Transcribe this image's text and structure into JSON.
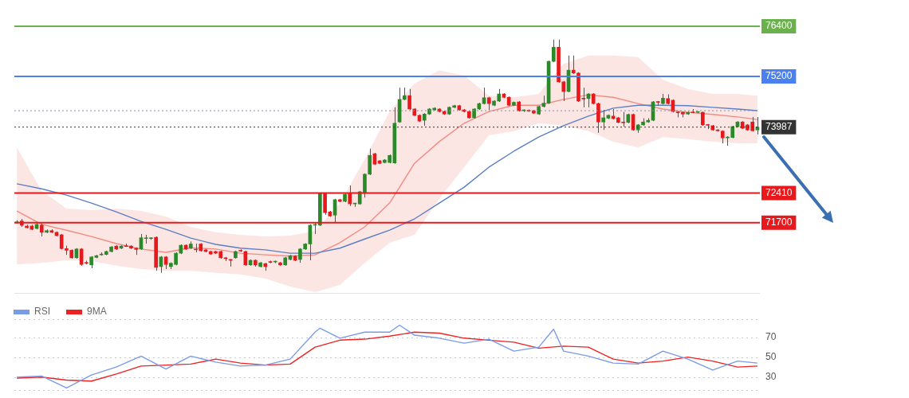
{
  "chart_data": [
    {
      "type": "candlestick",
      "categories": [
        null,
        null,
        null,
        null,
        null,
        null,
        null,
        null,
        null,
        null,
        null,
        null,
        null,
        null,
        null,
        null,
        null,
        null,
        null,
        null,
        null,
        null,
        null,
        null,
        null,
        null,
        null,
        null,
        null,
        null,
        null,
        null,
        null,
        null,
        null,
        null,
        null,
        null,
        null,
        null,
        null,
        null,
        null,
        null,
        null,
        null,
        null,
        null,
        null,
        null,
        null,
        null,
        null,
        null,
        null,
        null,
        null,
        null,
        null,
        null,
        null,
        null,
        null,
        null,
        null,
        null,
        null,
        null,
        null,
        null,
        null,
        null,
        null,
        null,
        null,
        null,
        null,
        null,
        null,
        null,
        null,
        null,
        null,
        null,
        null,
        null,
        null,
        null,
        null,
        null,
        null,
        null,
        null,
        null,
        null,
        null,
        null,
        null,
        null,
        null,
        null,
        null,
        null,
        null,
        null,
        null,
        null,
        null,
        null,
        null,
        null,
        null,
        null,
        null,
        null,
        null,
        null,
        null,
        null,
        null,
        null,
        null,
        null,
        null,
        null,
        null,
        null,
        null,
        null,
        null,
        null,
        null,
        null,
        null,
        null,
        null,
        null,
        null,
        null,
        null,
        null,
        null,
        null,
        null,
        null,
        null,
        null,
        null,
        null,
        null
      ],
      "ohlc": [
        [
          71700,
          71760,
          71680,
          71720
        ],
        [
          71740,
          71790,
          71600,
          71640
        ],
        [
          71620,
          71650,
          71560,
          71580
        ],
        [
          71620,
          71650,
          71520,
          71540
        ],
        [
          71560,
          71690,
          71540,
          71660
        ],
        [
          71640,
          71680,
          71370,
          71470
        ],
        [
          71470,
          71540,
          71450,
          71510
        ],
        [
          71510,
          71540,
          71450,
          71470
        ],
        [
          71470,
          71490,
          71370,
          71390
        ],
        [
          71410,
          71430,
          71060,
          71080
        ],
        [
          71080,
          71150,
          70930,
          71040
        ],
        [
          71040,
          71060,
          70840,
          70860
        ],
        [
          70860,
          71090,
          70840,
          71070
        ],
        [
          71070,
          71090,
          70670,
          70700
        ],
        [
          70740,
          70790,
          70700,
          70730
        ],
        [
          70690,
          70900,
          70610,
          70880
        ],
        [
          70870,
          70930,
          70850,
          70910
        ],
        [
          70930,
          70990,
          70910,
          70950
        ],
        [
          70940,
          71030,
          70920,
          71010
        ],
        [
          71010,
          71140,
          70990,
          71120
        ],
        [
          71140,
          71160,
          71050,
          71070
        ],
        [
          71090,
          71160,
          71070,
          71140
        ],
        [
          71140,
          71200,
          71120,
          71130
        ],
        [
          71140,
          71160,
          71070,
          71090
        ],
        [
          71090,
          71110,
          70930,
          71060
        ],
        [
          71070,
          71430,
          71050,
          71340
        ],
        [
          71320,
          71410,
          71200,
          71330
        ],
        [
          71320,
          71350,
          71290,
          71330
        ],
        [
          71350,
          71370,
          70550,
          70630
        ],
        [
          70650,
          70900,
          70500,
          70880
        ],
        [
          70880,
          70900,
          70590,
          70700
        ],
        [
          70650,
          70750,
          70590,
          70730
        ],
        [
          70700,
          70990,
          70680,
          70970
        ],
        [
          70970,
          71180,
          70950,
          71160
        ],
        [
          71160,
          71180,
          71050,
          71070
        ],
        [
          71090,
          71250,
          71070,
          71190
        ],
        [
          71060,
          71200,
          70990,
          71050
        ],
        [
          71190,
          71210,
          71010,
          71030
        ],
        [
          71050,
          71070,
          70990,
          71010
        ],
        [
          71010,
          71030,
          70930,
          70950
        ],
        [
          71010,
          71030,
          70950,
          70970
        ],
        [
          71010,
          71030,
          70840,
          70860
        ],
        [
          70860,
          70880,
          70780,
          70840
        ],
        [
          70810,
          70830,
          70650,
          70800
        ],
        [
          70860,
          71030,
          70840,
          71010
        ],
        [
          71030,
          71060,
          71000,
          71020
        ],
        [
          71010,
          71030,
          70670,
          70690
        ],
        [
          70690,
          70820,
          70670,
          70800
        ],
        [
          70800,
          70820,
          70650,
          70690
        ],
        [
          70650,
          70760,
          70630,
          70740
        ],
        [
          70720,
          70740,
          70550,
          70650
        ],
        [
          70760,
          70790,
          70730,
          70750
        ],
        [
          70760,
          70790,
          70730,
          70770
        ],
        [
          70740,
          70760,
          70670,
          70690
        ],
        [
          70690,
          70880,
          70670,
          70860
        ],
        [
          70820,
          70930,
          70800,
          70910
        ],
        [
          70900,
          70920,
          70780,
          70800
        ],
        [
          70820,
          71090,
          70740,
          71070
        ],
        [
          71070,
          71210,
          71050,
          71190
        ],
        [
          71190,
          71660,
          70800,
          71640
        ],
        [
          71640,
          71700,
          71430,
          71650
        ],
        [
          71640,
          72420,
          71620,
          72400
        ],
        [
          72400,
          72420,
          71890,
          71940
        ],
        [
          71960,
          71980,
          71840,
          71860
        ],
        [
          71880,
          72270,
          71700,
          72250
        ],
        [
          72250,
          72270,
          72190,
          72210
        ],
        [
          72210,
          72400,
          72190,
          72380
        ],
        [
          72400,
          72590,
          72100,
          72150
        ],
        [
          72150,
          72170,
          72080,
          72160
        ],
        [
          72150,
          72460,
          72130,
          72440
        ],
        [
          72420,
          72880,
          72300,
          72860
        ],
        [
          72860,
          73470,
          72840,
          73310
        ],
        [
          73350,
          73370,
          73080,
          73100
        ],
        [
          73180,
          73200,
          73100,
          73120
        ],
        [
          73140,
          73220,
          73120,
          73200
        ],
        [
          73140,
          73330,
          73120,
          73310
        ],
        [
          73130,
          74460,
          73110,
          74080
        ],
        [
          74110,
          74930,
          74090,
          74650
        ],
        [
          74650,
          74930,
          74630,
          74740
        ],
        [
          74740,
          74900,
          74400,
          74420
        ],
        [
          74420,
          74440,
          74250,
          74270
        ],
        [
          74270,
          74290,
          74110,
          74130
        ],
        [
          74150,
          74320,
          74020,
          74300
        ],
        [
          74300,
          74440,
          74280,
          74420
        ],
        [
          74400,
          74460,
          74380,
          74440
        ],
        [
          74420,
          74440,
          74340,
          74360
        ],
        [
          74360,
          74380,
          74280,
          74300
        ],
        [
          74300,
          74480,
          74280,
          74460
        ],
        [
          74460,
          74520,
          74440,
          74500
        ],
        [
          74500,
          74520,
          74380,
          74400
        ],
        [
          74400,
          74420,
          74340,
          74360
        ],
        [
          74360,
          74380,
          74190,
          74210
        ],
        [
          74210,
          74440,
          74190,
          74420
        ],
        [
          74420,
          74570,
          74400,
          74550
        ],
        [
          74550,
          74930,
          74530,
          74690
        ],
        [
          74690,
          74710,
          74400,
          74550
        ],
        [
          74510,
          74630,
          74490,
          74610
        ],
        [
          74610,
          74900,
          74590,
          74780
        ],
        [
          74780,
          74800,
          74680,
          74700
        ],
        [
          74700,
          74720,
          74490,
          74510
        ],
        [
          74510,
          74600,
          74490,
          74580
        ],
        [
          74590,
          74610,
          74360,
          74380
        ],
        [
          74380,
          74410,
          74350,
          74390
        ],
        [
          74380,
          74410,
          74350,
          74370
        ],
        [
          74380,
          74400,
          74300,
          74320
        ],
        [
          74300,
          74500,
          74280,
          74480
        ],
        [
          74480,
          74740,
          74460,
          74560
        ],
        [
          74560,
          75580,
          74540,
          75560
        ],
        [
          75560,
          76080,
          75540,
          75900
        ],
        [
          75900,
          76080,
          75050,
          75070
        ],
        [
          75070,
          75090,
          74610,
          74840
        ],
        [
          74840,
          75700,
          74820,
          75350
        ],
        [
          75350,
          75700,
          75260,
          75280
        ],
        [
          75280,
          75300,
          74590,
          74610
        ],
        [
          74670,
          74930,
          74460,
          74660
        ],
        [
          74670,
          74800,
          74460,
          74780
        ],
        [
          74780,
          74800,
          74530,
          74550
        ],
        [
          74550,
          74570,
          73850,
          74110
        ],
        [
          74110,
          74400,
          73920,
          74210
        ],
        [
          74200,
          74290,
          74180,
          74270
        ],
        [
          74250,
          74420,
          74170,
          74190
        ],
        [
          74210,
          74230,
          74080,
          74100
        ],
        [
          74100,
          74350,
          74000,
          74090
        ],
        [
          74100,
          74310,
          74080,
          74290
        ],
        [
          74290,
          74310,
          73900,
          73920
        ],
        [
          73920,
          74060,
          73850,
          74040
        ],
        [
          74040,
          74200,
          74020,
          74110
        ],
        [
          74110,
          74200,
          74090,
          74150
        ],
        [
          74150,
          74610,
          74130,
          74590
        ],
        [
          74590,
          74610,
          74500,
          74580
        ],
        [
          74550,
          74780,
          74530,
          74680
        ],
        [
          74670,
          74770,
          74530,
          74550
        ],
        [
          74630,
          74650,
          74340,
          74360
        ],
        [
          74340,
          74360,
          74220,
          74330
        ],
        [
          74340,
          74360,
          74220,
          74300
        ],
        [
          74300,
          74360,
          74280,
          74340
        ],
        [
          74340,
          74420,
          74320,
          74330
        ],
        [
          74340,
          74360,
          74320,
          74350
        ],
        [
          74340,
          74360,
          74020,
          74040
        ],
        [
          74040,
          74060,
          73940,
          74030
        ],
        [
          74020,
          74040,
          73900,
          73920
        ],
        [
          73920,
          73940,
          73880,
          73900
        ],
        [
          73890,
          73910,
          73600,
          73730
        ],
        [
          73730,
          73770,
          73540,
          73750
        ],
        [
          73740,
          74020,
          73720,
          74000
        ],
        [
          74000,
          74130,
          73980,
          74110
        ],
        [
          74110,
          74130,
          73940,
          73960
        ],
        [
          74040,
          74060,
          73900,
          73920
        ],
        [
          74110,
          74230,
          73880,
          73900
        ],
        [
          73920,
          74230,
          73810,
          73987
        ]
      ],
      "series": [
        {
          "type": "line",
          "color": "#5b7fc4",
          "values": [
            72630,
            null,
            null,
            null,
            null,
            72510,
            null,
            null,
            null,
            null,
            72360,
            null,
            null,
            null,
            null,
            72170,
            null,
            null,
            null,
            null,
            71960,
            null,
            null,
            null,
            null,
            71730,
            null,
            null,
            null,
            null,
            71540,
            null,
            null,
            null,
            null,
            71330,
            null,
            null,
            null,
            null,
            71180,
            null,
            null,
            null,
            null,
            71090,
            null,
            null,
            null,
            null,
            71050,
            null,
            null,
            null,
            null,
            70970,
            null,
            null,
            null,
            null,
            70970,
            null,
            null,
            null,
            null,
            71090,
            null,
            null,
            null,
            null,
            71310,
            null,
            null,
            null,
            null,
            71520,
            null,
            null,
            null,
            null,
            71790,
            null,
            null,
            null,
            null,
            72170,
            null,
            null,
            null,
            null,
            72550,
            null,
            null,
            null,
            null,
            73030,
            null,
            null,
            null,
            null,
            73410,
            null,
            null,
            null,
            null,
            73750,
            null,
            null,
            null,
            null,
            74020,
            null,
            null,
            null,
            null,
            74250,
            null,
            null,
            null,
            null,
            74440,
            null,
            null,
            null,
            null,
            74510,
            null,
            null,
            null,
            null,
            74510,
            null,
            null,
            null,
            null,
            74500,
            null,
            null,
            null,
            null,
            74460,
            null,
            null,
            null,
            null,
            74420,
            null,
            null,
            null,
            74380
          ]
        },
        {
          "type": "line",
          "color": "#f28b82",
          "values": [
            71980,
            null,
            null,
            null,
            null,
            71660,
            null,
            null,
            null,
            null,
            71520,
            null,
            null,
            null,
            null,
            71370,
            null,
            null,
            null,
            null,
            71200,
            null,
            null,
            null,
            null,
            71070,
            null,
            null,
            null,
            null,
            70990,
            null,
            null,
            null,
            null,
            71100,
            null,
            null,
            null,
            null,
            71070,
            null,
            null,
            null,
            null,
            70970,
            null,
            null,
            null,
            null,
            70930,
            null,
            null,
            null,
            null,
            70900,
            null,
            null,
            null,
            null,
            70930,
            null,
            null,
            null,
            null,
            71220,
            null,
            null,
            null,
            null,
            71600,
            null,
            null,
            null,
            null,
            72170,
            null,
            null,
            null,
            null,
            73120,
            null,
            null,
            null,
            null,
            73640,
            null,
            null,
            null,
            null,
            74080,
            null,
            null,
            null,
            null,
            74360,
            null,
            null,
            null,
            null,
            74510,
            null,
            null,
            null,
            null,
            74510,
            null,
            null,
            null,
            null,
            74650,
            null,
            null,
            null,
            null,
            74760,
            null,
            null,
            null,
            null,
            74700,
            null,
            null,
            null,
            null,
            74550,
            null,
            null,
            null,
            null,
            74420,
            null,
            null,
            null,
            null,
            74340,
            null,
            null,
            null,
            null,
            74290,
            null,
            null,
            null,
            null,
            74230,
            null,
            null,
            null,
            74170
          ],
          "upper": [
            73500,
            null,
            null,
            null,
            null,
            72460,
            null,
            null,
            null,
            null,
            72040,
            null,
            null,
            null,
            null,
            72000,
            null,
            null,
            null,
            null,
            72040,
            null,
            null,
            null,
            null,
            71980,
            null,
            null,
            null,
            null,
            71850,
            null,
            null,
            null,
            null,
            71600,
            null,
            null,
            null,
            null,
            71470,
            null,
            null,
            null,
            null,
            71410,
            null,
            null,
            null,
            null,
            71370,
            null,
            null,
            null,
            null,
            71390,
            null,
            null,
            null,
            null,
            71500,
            null,
            null,
            null,
            null,
            72170,
            null,
            null,
            null,
            null,
            73220,
            null,
            null,
            null,
            null,
            74360,
            null,
            null,
            null,
            null,
            75030,
            null,
            null,
            null,
            null,
            75350,
            null,
            null,
            null,
            null,
            75220,
            null,
            null,
            null,
            null,
            74740,
            null,
            null,
            null,
            null,
            74700,
            null,
            null,
            null,
            null,
            74780,
            null,
            null,
            null,
            null,
            75500,
            null,
            null,
            null,
            null,
            75700,
            null,
            null,
            null,
            null,
            75700,
            null,
            null,
            null,
            null,
            75660,
            null,
            null,
            null,
            null,
            75120,
            null,
            null,
            null,
            null,
            74900,
            null,
            null,
            null,
            null,
            74780,
            null,
            null,
            null,
            null,
            74780,
            null,
            null,
            null,
            74740
          ],
          "lower": [
            70700,
            null,
            null,
            null,
            null,
            70740,
            null,
            null,
            null,
            null,
            70800,
            null,
            null,
            null,
            null,
            70780,
            null,
            null,
            null,
            null,
            70670,
            null,
            null,
            null,
            null,
            70590,
            null,
            null,
            null,
            null,
            70550,
            null,
            null,
            null,
            null,
            70550,
            null,
            null,
            null,
            null,
            70500,
            null,
            null,
            null,
            null,
            70460,
            null,
            null,
            null,
            null,
            70360,
            null,
            null,
            null,
            null,
            70170,
            null,
            null,
            null,
            null,
            70040,
            null,
            null,
            null,
            null,
            70210,
            null,
            null,
            null,
            null,
            70740,
            null,
            null,
            null,
            null,
            71220,
            null,
            null,
            null,
            null,
            71410,
            null,
            null,
            null,
            null,
            72270,
            null,
            null,
            null,
            null,
            73030,
            null,
            null,
            null,
            null,
            73790,
            null,
            null,
            null,
            null,
            73890,
            null,
            null,
            null,
            null,
            74080,
            null,
            null,
            null,
            null,
            74020,
            null,
            null,
            null,
            null,
            73890,
            null,
            null,
            null,
            null,
            73640,
            null,
            null,
            null,
            null,
            73500,
            null,
            null,
            null,
            null,
            73750,
            null,
            null,
            null,
            null,
            73700,
            null,
            null,
            null,
            null,
            73640,
            null,
            null,
            null,
            null,
            73600,
            null,
            null,
            null,
            73600
          ]
        }
      ],
      "ylim": [
        70000,
        76400
      ],
      "yticks": [
        71700,
        72410,
        73987,
        75200,
        76400
      ],
      "ref_lines": [
        {
          "axis": "y",
          "value": 76400,
          "color": "#6ab04c"
        },
        {
          "axis": "y",
          "value": 75200,
          "color": "#4a80f0"
        },
        {
          "axis": "y",
          "value": 74380,
          "color": "#8090b0",
          "line_style": "dotted"
        },
        {
          "axis": "y",
          "value": 73987,
          "color": "#333333",
          "line_style": "dotted"
        },
        {
          "axis": "y",
          "value": 72410,
          "color": "#e8191c"
        },
        {
          "axis": "y",
          "value": 71700,
          "color": "#e8191c"
        }
      ]
    },
    {
      "type": "line",
      "categories": [
        null,
        null,
        null,
        null,
        null,
        null,
        null,
        null,
        null,
        null,
        null,
        null,
        null,
        null,
        null,
        null,
        null,
        null,
        null,
        null,
        null,
        null,
        null,
        null,
        null,
        null,
        null,
        null,
        null,
        null,
        null,
        null,
        null,
        null,
        null,
        null,
        null,
        null,
        null,
        null,
        null,
        null,
        null,
        null,
        null,
        null,
        null,
        null,
        null,
        null,
        null,
        null,
        null,
        null,
        null,
        null,
        null,
        null,
        null,
        null,
        null,
        null,
        null,
        null,
        null,
        null,
        null,
        null,
        null,
        null,
        null,
        null,
        null,
        null,
        null,
        null,
        null,
        null,
        null,
        null,
        null,
        null,
        null,
        null,
        null,
        null,
        null,
        null,
        null,
        null,
        null,
        null,
        null,
        null,
        null,
        null,
        null,
        null,
        null,
        null,
        null,
        null,
        null,
        null,
        null,
        null,
        null,
        null,
        null,
        null,
        null,
        null,
        null,
        null,
        null,
        null,
        null,
        null,
        null,
        null,
        null,
        null,
        null,
        null,
        null,
        null,
        null,
        null,
        null,
        null,
        null,
        null,
        null,
        null,
        null,
        null,
        null,
        null,
        null,
        null,
        null,
        null,
        null,
        null,
        null,
        null,
        null,
        null,
        null,
        null
      ],
      "series": [
        {
          "name": "RSI",
          "color": "#7b9be6",
          "values": [
            30,
            null,
            null,
            null,
            null,
            31,
            null,
            null,
            null,
            null,
            19,
            null,
            null,
            null,
            null,
            32,
            null,
            null,
            null,
            null,
            40,
            null,
            null,
            null,
            null,
            51,
            null,
            null,
            null,
            null,
            38,
            null,
            null,
            null,
            null,
            51,
            null,
            null,
            null,
            null,
            45,
            null,
            null,
            null,
            null,
            41,
            null,
            null,
            null,
            null,
            42,
            null,
            null,
            null,
            null,
            48,
            null,
            null,
            null,
            null,
            75,
            79,
            null,
            null,
            null,
            69,
            null,
            null,
            null,
            null,
            75,
            null,
            null,
            null,
            null,
            75,
            null,
            82,
            null,
            null,
            72,
            null,
            null,
            null,
            null,
            69,
            null,
            null,
            null,
            null,
            64,
            null,
            null,
            null,
            null,
            68,
            null,
            null,
            null,
            null,
            56,
            null,
            null,
            null,
            null,
            60,
            null,
            null,
            78,
            null,
            56,
            null,
            null,
            null,
            null,
            51,
            null,
            null,
            null,
            null,
            44,
            null,
            null,
            null,
            null,
            43,
            null,
            null,
            null,
            null,
            56,
            null,
            null,
            null,
            null,
            48,
            null,
            null,
            null,
            null,
            37,
            null,
            null,
            null,
            null,
            46,
            null,
            null,
            null,
            44
          ]
        },
        {
          "name": "9MA",
          "color": "#ee2222",
          "values": [
            29,
            null,
            null,
            null,
            null,
            30,
            null,
            null,
            null,
            null,
            27,
            null,
            null,
            null,
            null,
            26,
            null,
            null,
            null,
            null,
            33,
            null,
            null,
            null,
            null,
            41,
            null,
            null,
            null,
            null,
            42,
            null,
            null,
            null,
            null,
            43,
            null,
            null,
            null,
            null,
            48,
            null,
            null,
            null,
            null,
            44,
            null,
            null,
            null,
            null,
            42,
            null,
            null,
            null,
            null,
            43,
            null,
            null,
            null,
            null,
            60,
            null,
            null,
            null,
            null,
            67,
            null,
            null,
            null,
            null,
            68,
            null,
            null,
            null,
            null,
            71,
            null,
            null,
            null,
            null,
            75,
            null,
            null,
            null,
            null,
            74,
            null,
            null,
            null,
            null,
            69,
            null,
            null,
            null,
            null,
            67,
            null,
            null,
            null,
            null,
            65,
            null,
            null,
            null,
            null,
            59,
            null,
            null,
            null,
            null,
            61,
            null,
            null,
            null,
            null,
            60,
            null,
            null,
            null,
            null,
            48,
            null,
            null,
            null,
            null,
            44,
            null,
            null,
            null,
            null,
            46,
            null,
            null,
            null,
            null,
            50,
            null,
            null,
            null,
            null,
            46,
            null,
            null,
            null,
            null,
            40,
            null,
            null,
            null,
            41
          ]
        }
      ],
      "ylim": [
        17,
        88
      ],
      "yticks": [
        30,
        50,
        70
      ],
      "grid": "y",
      "legend": "top left",
      "tick_labels": "y"
    }
  ]
}
